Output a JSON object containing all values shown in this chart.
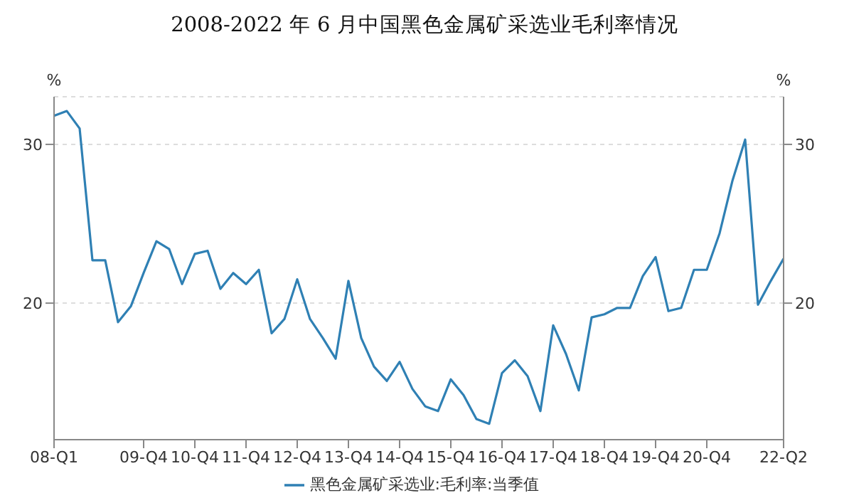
{
  "chart_data": {
    "type": "line",
    "title": "2008-2022 年 6 月中国黑色金属矿采选业毛利率情况",
    "ylabel": "%",
    "y2label": "%",
    "categories": [
      "08-Q1",
      null,
      null,
      null,
      null,
      null,
      null,
      "09-Q4",
      null,
      null,
      null,
      "10-Q4",
      null,
      null,
      null,
      "11-Q4",
      null,
      null,
      null,
      "12-Q4",
      null,
      null,
      null,
      "13-Q4",
      null,
      null,
      null,
      "14-Q4",
      null,
      null,
      null,
      "15-Q4",
      null,
      null,
      null,
      "16-Q4",
      null,
      null,
      null,
      "17-Q4",
      null,
      null,
      null,
      "18-Q4",
      null,
      null,
      null,
      "19-Q4",
      null,
      null,
      null,
      "20-Q4",
      null,
      null,
      null,
      null,
      null,
      "22-Q2"
    ],
    "series": [
      {
        "name": "黑色金属矿采选业:毛利率:当季值",
        "color": "#2f80b4",
        "values": [
          31.8,
          32.1,
          31.0,
          22.7,
          22.7,
          18.8,
          19.8,
          21.9,
          23.9,
          23.4,
          21.2,
          23.1,
          23.3,
          20.9,
          21.9,
          21.2,
          22.1,
          18.1,
          19.0,
          21.5,
          19.0,
          17.8,
          16.5,
          21.4,
          17.8,
          16.0,
          15.1,
          16.3,
          14.6,
          13.5,
          13.2,
          15.2,
          14.2,
          12.7,
          12.4,
          15.6,
          16.4,
          15.4,
          13.2,
          18.6,
          16.8,
          14.5,
          19.1,
          19.3,
          19.7,
          19.7,
          21.7,
          22.9,
          19.5,
          19.7,
          22.1,
          22.1,
          24.4,
          27.7,
          30.3,
          19.9,
          21.4,
          22.8
        ]
      }
    ],
    "ylim": [
      11.4,
      33
    ],
    "yticks": [
      20,
      30
    ],
    "y2lim": [
      11.4,
      33
    ],
    "y2ticks": [
      20,
      30
    ],
    "grid": "y",
    "legend": "bottom",
    "marker": "none",
    "line_style": "solid"
  }
}
